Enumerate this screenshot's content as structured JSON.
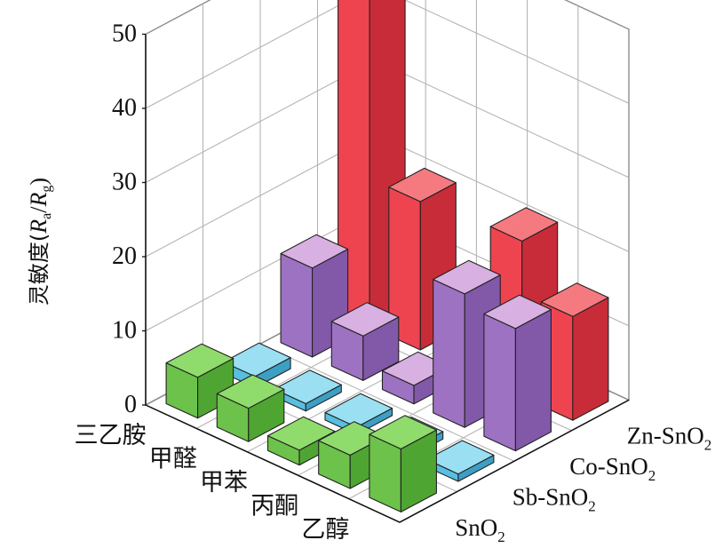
{
  "chart_data": {
    "type": "bar3d",
    "ylabel": {
      "prefix": "灵敏度(",
      "r1": "R",
      "r1_sub": "a",
      "slash": "/",
      "r2": "R",
      "r2_sub": "g",
      "suffix": ")"
    },
    "zlim": [
      0,
      50
    ],
    "z_ticks": [
      "0",
      "10",
      "20",
      "30",
      "40",
      "50"
    ],
    "gases": [
      "乙醇",
      "丙酮",
      "甲苯",
      "甲醛",
      "三乙胺"
    ],
    "materials": [
      {
        "base": "SnO",
        "sub": "2",
        "prefix": ""
      },
      {
        "base": "SnO",
        "sub": "2",
        "prefix": "Sb-"
      },
      {
        "base": "SnO",
        "sub": "2",
        "prefix": "Co-"
      },
      {
        "base": "SnO",
        "sub": "2",
        "prefix": "Zn-"
      }
    ],
    "series": [
      {
        "values": [
          8.5,
          4.5,
          2.0,
          4.5,
          5.5
        ],
        "colors": {
          "front": "#6cc24a",
          "top": "#8fdc6c",
          "side": "#4fa532"
        }
      },
      {
        "values": [
          1.0,
          1.0,
          1.0,
          1.0,
          1.5
        ],
        "colors": {
          "front": "#58bfe0",
          "top": "#9ae0f2",
          "side": "#3e9fc4"
        }
      },
      {
        "values": [
          16.5,
          18.0,
          2.5,
          6.0,
          12.0
        ],
        "colors": {
          "front": "#9e72c2",
          "top": "#d8b0e2",
          "side": "#8258a8"
        }
      },
      {
        "values": [
          14.0,
          21.0,
          6.5,
          20.0,
          48.0
        ],
        "colors": {
          "front": "#ee4450",
          "top": "#f57a80",
          "side": "#c82c38"
        }
      }
    ],
    "grid": true
  }
}
